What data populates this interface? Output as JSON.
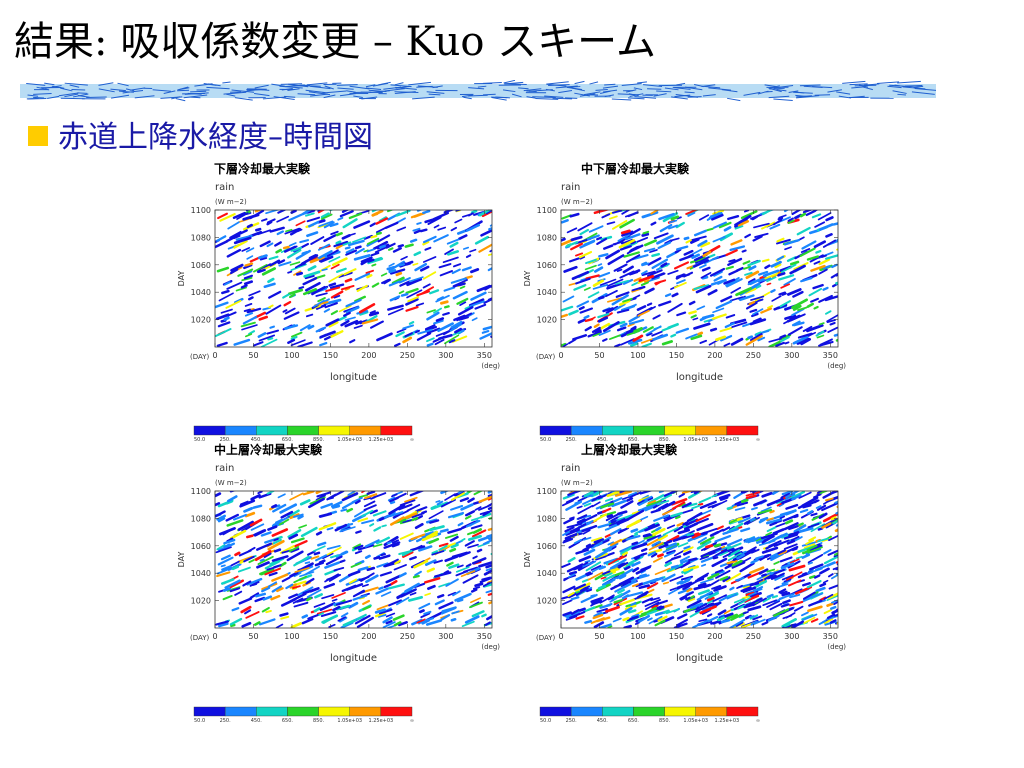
{
  "slide": {
    "title": "結果: 吸収係数変更 – Kuo スキーム",
    "bullet": "赤道上降水経度–時間図",
    "bullet_color": "#ffcc00",
    "bullet_text_color": "#1a1aa6"
  },
  "panels": [
    {
      "id": "lower",
      "title": "下層冷却最大実験",
      "variable": "rain",
      "units": "(W m−2)",
      "density": 0.32
    },
    {
      "id": "midlower",
      "title": "中下層冷却最大実験",
      "variable": "rain",
      "units": "(W m−2)",
      "density": 0.36
    },
    {
      "id": "midupper",
      "title": "中上層冷却最大実験",
      "variable": "rain",
      "units": "(W m−2)",
      "density": 0.42
    },
    {
      "id": "upper",
      "title": "上層冷却最大実験",
      "variable": "rain",
      "units": "(W m−2)",
      "density": 0.85
    }
  ],
  "chart_data": {
    "type": "heatmap",
    "xlabel": "longitude",
    "xunit": "(deg)",
    "ylabel": "DAY",
    "yunit": "(DAY)",
    "xlim": [
      0,
      360
    ],
    "ylim": [
      1000,
      1100
    ],
    "xticks": [
      0,
      50,
      100,
      150,
      200,
      250,
      300,
      350
    ],
    "yticks": [
      1020,
      1040,
      1060,
      1080,
      1100
    ],
    "colorbar": {
      "labels": [
        "50.0",
        "250.",
        "450.",
        "650.",
        "850.",
        "1.05e+03",
        "1.25e+03",
        "∞"
      ],
      "colors": [
        "#1010e0",
        "#1a86ff",
        "#12d4c4",
        "#2ad42a",
        "#f6f600",
        "#ff9a00",
        "#ff1010"
      ]
    }
  }
}
